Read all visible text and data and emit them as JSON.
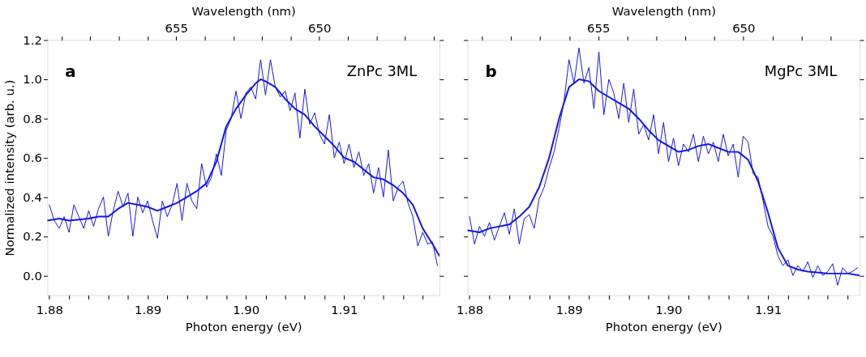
{
  "chart_data": [
    {
      "type": "line",
      "xlabel": "Photon energy (eV)",
      "ylabel": "Normalized intensity (arb. u.)",
      "x2label": "Wavelength (nm)",
      "annotations": [
        "a",
        "ZnPc 3ML"
      ],
      "xlim": [
        1.8798,
        1.9197
      ],
      "ylim": [
        -0.1,
        1.2
      ],
      "x2lim": [
        659.5,
        645.8
      ],
      "tick_labels": true,
      "xticks": [
        {
          "value": 1.88,
          "label": "1.88"
        },
        {
          "value": 1.882,
          "label": null
        },
        {
          "value": 1.884,
          "label": null
        },
        {
          "value": 1.886,
          "label": null
        },
        {
          "value": 1.888,
          "label": null
        },
        {
          "value": 1.89,
          "label": "1.89"
        },
        {
          "value": 1.892,
          "label": null
        },
        {
          "value": 1.894,
          "label": null
        },
        {
          "value": 1.896,
          "label": null
        },
        {
          "value": 1.898,
          "label": null
        },
        {
          "value": 1.9,
          "label": "1.90"
        },
        {
          "value": 1.902,
          "label": null
        },
        {
          "value": 1.904,
          "label": null
        },
        {
          "value": 1.906,
          "label": null
        },
        {
          "value": 1.908,
          "label": null
        },
        {
          "value": 1.91,
          "label": "1.91"
        },
        {
          "value": 1.912,
          "label": null
        },
        {
          "value": 1.914,
          "label": null
        },
        {
          "value": 1.916,
          "label": null
        },
        {
          "value": 1.918,
          "label": null
        }
      ],
      "yticks": [
        {
          "value": 0,
          "label": "0.0"
        },
        {
          "value": 0.2,
          "label": "0.2"
        },
        {
          "value": 0.4,
          "label": "0.4"
        },
        {
          "value": 0.6,
          "label": "0.6"
        },
        {
          "value": 0.8,
          "label": "0.8"
        },
        {
          "value": 1.0,
          "label": "1.0"
        },
        {
          "value": 1.2,
          "label": "1.2"
        }
      ],
      "x2ticks": [
        {
          "value": 659,
          "label": null
        },
        {
          "value": 658,
          "label": null
        },
        {
          "value": 657,
          "label": null
        },
        {
          "value": 656,
          "label": null
        },
        655,
        {
          "value": 654,
          "label": null
        },
        {
          "value": 653,
          "label": null
        },
        {
          "value": 652,
          "label": null
        },
        {
          "value": 651,
          "label": null
        },
        650,
        {
          "value": 649,
          "label": null
        },
        {
          "value": 648,
          "label": null
        },
        {
          "value": 647,
          "label": null
        },
        {
          "value": 646,
          "label": null
        }
      ],
      "grid": false,
      "marker": "none",
      "line_style": "solid",
      "series": [
        {
          "color": "#1414f0",
          "x": [
            1.88,
            1.8805,
            1.881,
            1.8815,
            1.882,
            1.8825,
            1.883,
            1.8835,
            1.884,
            1.8845,
            1.885,
            1.8855,
            1.886,
            1.8865,
            1.887,
            1.8875,
            1.888,
            1.8885,
            1.889,
            1.8895,
            1.89,
            1.8905,
            1.891,
            1.8915,
            1.892,
            1.8925,
            1.893,
            1.8935,
            1.894,
            1.8945,
            1.895,
            1.8955,
            1.896,
            1.8965,
            1.897,
            1.8975,
            1.898,
            1.8985,
            1.899,
            1.8995,
            1.9,
            1.9005,
            1.901,
            1.9015,
            1.902,
            1.9025,
            1.903,
            1.9035,
            1.904,
            1.9045,
            1.905,
            1.9055,
            1.906,
            1.9065,
            1.907,
            1.9075,
            1.908,
            1.9085,
            1.909,
            1.9095,
            1.91,
            1.9105,
            1.911,
            1.9115,
            1.912,
            1.9125,
            1.913,
            1.9135,
            1.914,
            1.9145,
            1.915,
            1.9155,
            1.916,
            1.9165,
            1.917,
            1.9175,
            1.918,
            1.9185,
            1.919,
            1.9195
          ],
          "values": [
            0.36,
            0.28,
            0.24,
            0.3,
            0.22,
            0.36,
            0.3,
            0.24,
            0.33,
            0.25,
            0.34,
            0.4,
            0.2,
            0.33,
            0.43,
            0.35,
            0.42,
            0.2,
            0.4,
            0.32,
            0.38,
            0.28,
            0.19,
            0.38,
            0.3,
            0.36,
            0.47,
            0.28,
            0.47,
            0.38,
            0.34,
            0.57,
            0.45,
            0.5,
            0.62,
            0.51,
            0.74,
            0.8,
            0.94,
            0.8,
            0.93,
            0.96,
            0.9,
            1.1,
            0.92,
            1.1,
            0.96,
            0.91,
            0.94,
            0.84,
            0.93,
            0.7,
            0.95,
            0.77,
            0.83,
            0.72,
            0.67,
            0.82,
            0.6,
            0.68,
            0.57,
            0.67,
            0.55,
            0.63,
            0.51,
            0.57,
            0.42,
            0.55,
            0.4,
            0.64,
            0.38,
            0.45,
            0.48,
            0.37,
            0.3,
            0.15,
            0.22,
            0.16,
            0.17,
            0.05
          ]
        },
        {
          "color": "#1414f0",
          "x": [
            1.8798,
            1.881,
            1.882,
            1.884,
            1.885,
            1.886,
            1.887,
            1.888,
            1.889,
            1.89,
            1.891,
            1.892,
            1.893,
            1.894,
            1.895,
            1.896,
            1.897,
            1.898,
            1.899,
            1.9,
            1.901,
            1.9015,
            1.902,
            1.903,
            1.904,
            1.905,
            1.906,
            1.907,
            1.908,
            1.909,
            1.91,
            1.911,
            1.912,
            1.913,
            1.914,
            1.915,
            1.916,
            1.917,
            1.918,
            1.919,
            1.9197
          ],
          "values": [
            0.28,
            0.29,
            0.28,
            0.29,
            0.3,
            0.3,
            0.34,
            0.37,
            0.36,
            0.35,
            0.33,
            0.35,
            0.37,
            0.4,
            0.43,
            0.47,
            0.58,
            0.76,
            0.85,
            0.92,
            0.98,
            1.0,
            0.99,
            0.96,
            0.9,
            0.85,
            0.82,
            0.76,
            0.71,
            0.66,
            0.6,
            0.58,
            0.54,
            0.5,
            0.49,
            0.46,
            0.42,
            0.36,
            0.24,
            0.16,
            0.1
          ]
        }
      ]
    },
    {
      "type": "line",
      "xlabel": "Photon energy (eV)",
      "x2label": "Wavelength (nm)",
      "annotations": [
        "b",
        "MgPc 3ML"
      ],
      "xlim": [
        1.8798,
        1.9192
      ],
      "ylim": [
        -0.1,
        1.2
      ],
      "x2lim": [
        659.5,
        646.0
      ],
      "tick_labels": "x",
      "xticks": [
        {
          "value": 1.88,
          "label": "1.88"
        },
        {
          "value": 1.882,
          "label": null
        },
        {
          "value": 1.884,
          "label": null
        },
        {
          "value": 1.886,
          "label": null
        },
        {
          "value": 1.888,
          "label": null
        },
        {
          "value": 1.89,
          "label": "1.89"
        },
        {
          "value": 1.892,
          "label": null
        },
        {
          "value": 1.894,
          "label": null
        },
        {
          "value": 1.896,
          "label": null
        },
        {
          "value": 1.898,
          "label": null
        },
        {
          "value": 1.9,
          "label": "1.90"
        },
        {
          "value": 1.902,
          "label": null
        },
        {
          "value": 1.904,
          "label": null
        },
        {
          "value": 1.906,
          "label": null
        },
        {
          "value": 1.908,
          "label": null
        },
        {
          "value": 1.91,
          "label": "1.91"
        },
        {
          "value": 1.912,
          "label": null
        },
        {
          "value": 1.914,
          "label": null
        },
        {
          "value": 1.916,
          "label": null
        },
        {
          "value": 1.918,
          "label": null
        }
      ],
      "yticks": [
        {
          "value": 0,
          "label": null
        },
        {
          "value": 0.2,
          "label": null
        },
        {
          "value": 0.4,
          "label": null
        },
        {
          "value": 0.6,
          "label": null
        },
        {
          "value": 0.8,
          "label": null
        },
        {
          "value": 1.0,
          "label": null
        },
        {
          "value": 1.2,
          "label": null
        }
      ],
      "x2ticks": [
        {
          "value": 659,
          "label": null
        },
        {
          "value": 658,
          "label": null
        },
        {
          "value": 657,
          "label": null
        },
        {
          "value": 656,
          "label": null
        },
        655,
        {
          "value": 654,
          "label": null
        },
        {
          "value": 653,
          "label": null
        },
        {
          "value": 652,
          "label": null
        },
        {
          "value": 651,
          "label": null
        },
        650,
        {
          "value": 649,
          "label": null
        },
        {
          "value": 648,
          "label": null
        },
        {
          "value": 647,
          "label": null
        }
      ],
      "grid": false,
      "marker": "none",
      "line_style": "solid",
      "series": [
        {
          "color": "#1414f0",
          "x": [
            1.88,
            1.8805,
            1.881,
            1.8815,
            1.882,
            1.8825,
            1.883,
            1.8835,
            1.884,
            1.8845,
            1.885,
            1.8855,
            1.886,
            1.8865,
            1.887,
            1.8875,
            1.888,
            1.8885,
            1.889,
            1.8895,
            1.89,
            1.8905,
            1.891,
            1.8915,
            1.892,
            1.8925,
            1.893,
            1.8935,
            1.894,
            1.8945,
            1.895,
            1.8955,
            1.896,
            1.8965,
            1.897,
            1.8975,
            1.898,
            1.8985,
            1.899,
            1.8995,
            1.9,
            1.9005,
            1.901,
            1.9015,
            1.902,
            1.9025,
            1.903,
            1.9035,
            1.904,
            1.9045,
            1.905,
            1.9055,
            1.906,
            1.9065,
            1.907,
            1.9075,
            1.908,
            1.9085,
            1.909,
            1.9095,
            1.91,
            1.9105,
            1.911,
            1.9115,
            1.912,
            1.9125,
            1.913,
            1.9135,
            1.914,
            1.9145,
            1.915,
            1.9155,
            1.916,
            1.9165,
            1.917,
            1.9175,
            1.918,
            1.9185,
            1.919
          ],
          "values": [
            0.3,
            0.16,
            0.25,
            0.2,
            0.27,
            0.18,
            0.25,
            0.32,
            0.21,
            0.34,
            0.16,
            0.29,
            0.31,
            0.24,
            0.39,
            0.45,
            0.55,
            0.63,
            0.75,
            0.89,
            1.1,
            0.98,
            1.16,
            0.98,
            1.06,
            0.85,
            1.14,
            0.82,
            1.0,
            0.93,
            0.8,
            0.98,
            0.78,
            0.95,
            0.72,
            0.77,
            0.69,
            0.82,
            0.62,
            0.78,
            0.58,
            0.7,
            0.56,
            0.67,
            0.63,
            0.72,
            0.58,
            0.71,
            0.62,
            0.68,
            0.58,
            0.72,
            0.61,
            0.67,
            0.5,
            0.71,
            0.68,
            0.52,
            0.5,
            0.38,
            0.25,
            0.2,
            0.1,
            0.05,
            0.08,
            0.0,
            0.05,
            0.02,
            0.07,
            -0.01,
            0.05,
            0.0,
            0.02,
            0.06,
            -0.05,
            0.04,
            0.01,
            0.02,
            0.04
          ]
        },
        {
          "color": "#1414f0",
          "x": [
            1.8798,
            1.881,
            1.882,
            1.884,
            1.885,
            1.886,
            1.887,
            1.888,
            1.889,
            1.89,
            1.891,
            1.892,
            1.893,
            1.894,
            1.895,
            1.896,
            1.897,
            1.898,
            1.899,
            1.9,
            1.901,
            1.902,
            1.903,
            1.904,
            1.905,
            1.906,
            1.907,
            1.908,
            1.909,
            1.91,
            1.911,
            1.912,
            1.913,
            1.914,
            1.916,
            1.918,
            1.9192
          ],
          "values": [
            0.23,
            0.22,
            0.24,
            0.26,
            0.3,
            0.35,
            0.45,
            0.6,
            0.8,
            0.96,
            1.0,
            0.99,
            0.94,
            0.91,
            0.88,
            0.85,
            0.8,
            0.74,
            0.69,
            0.66,
            0.63,
            0.64,
            0.66,
            0.67,
            0.65,
            0.63,
            0.63,
            0.59,
            0.48,
            0.32,
            0.14,
            0.05,
            0.03,
            0.02,
            0.01,
            0.01,
            0.0
          ]
        }
      ]
    }
  ]
}
